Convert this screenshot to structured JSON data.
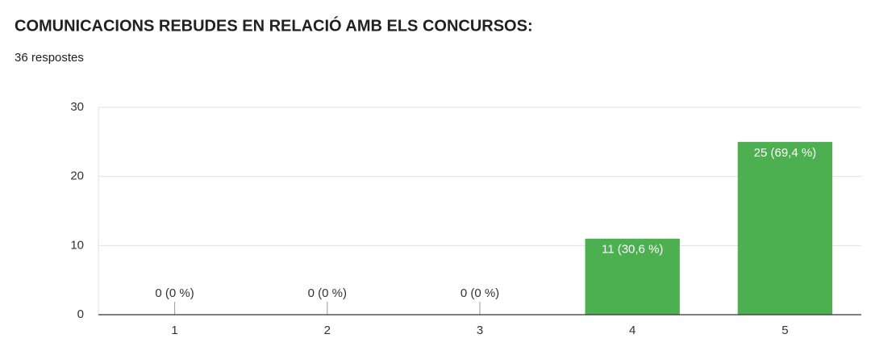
{
  "chart_data": {
    "type": "bar",
    "title": "COMUNICACIONS REBUDES EN RELACIÓ AMB ELS CONCURSOS:",
    "subtitle": "36 respostes",
    "categories": [
      "1",
      "2",
      "3",
      "4",
      "5"
    ],
    "values": [
      0,
      0,
      0,
      11,
      25
    ],
    "value_labels": [
      "0 (0 %)",
      "0 (0 %)",
      "0 (0 %)",
      "11 (30,6 %)",
      "25 (69,4 %)"
    ],
    "color": "#4caf50",
    "ylim": [
      0,
      30
    ],
    "yticks": [
      0,
      10,
      20,
      30
    ],
    "grid": true
  }
}
